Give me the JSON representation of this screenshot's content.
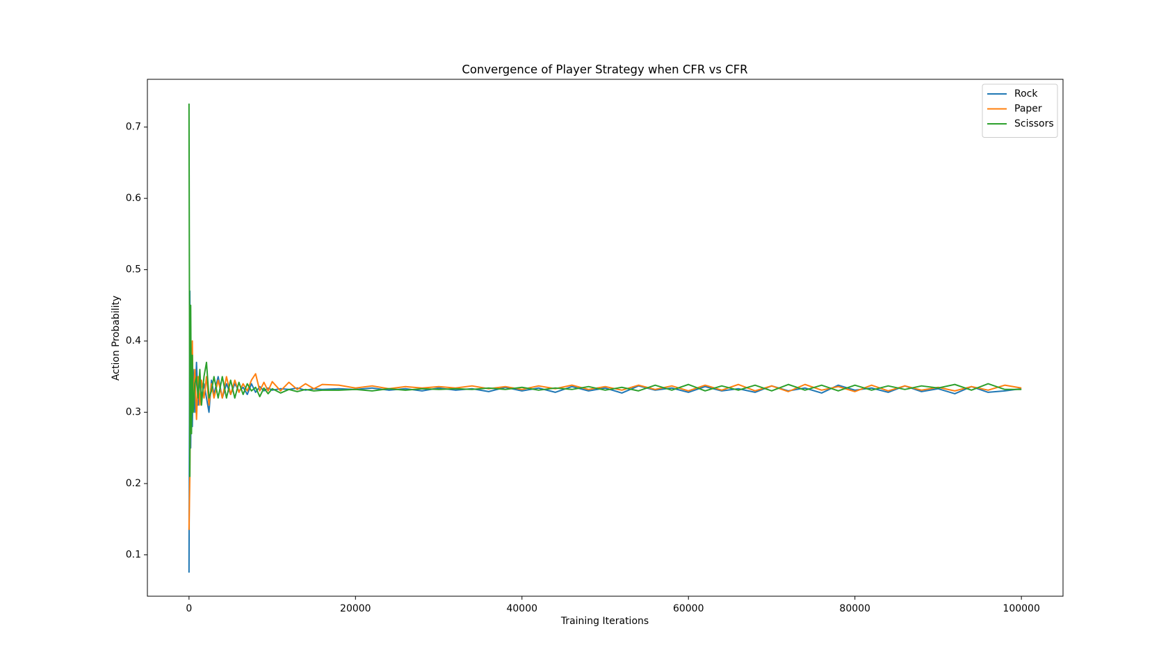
{
  "chart_data": {
    "type": "line",
    "title": "Convergence of Player Strategy when CFR vs CFR",
    "x_label": "Training Iterations",
    "y_label": "Action Probability",
    "xlim": [
      -5000,
      105000
    ],
    "ylim": [
      0.042,
      0.767
    ],
    "xticks": [
      0,
      20000,
      40000,
      60000,
      80000,
      100000
    ],
    "yticks": [
      0.1,
      0.2,
      0.3,
      0.4,
      0.5,
      0.6,
      0.7
    ],
    "legend": "upper right",
    "grid": false,
    "x": [
      0,
      100,
      200,
      300,
      400,
      500,
      700,
      900,
      1100,
      1300,
      1500,
      1800,
      2100,
      2400,
      2700,
      3000,
      3500,
      4000,
      4500,
      5000,
      5500,
      6000,
      6500,
      7000,
      7500,
      8000,
      8500,
      9000,
      9500,
      10000,
      11000,
      12000,
      13000,
      14000,
      15000,
      16000,
      18000,
      20000,
      22000,
      24000,
      26000,
      28000,
      30000,
      32000,
      34000,
      36000,
      38000,
      40000,
      42000,
      44000,
      46000,
      48000,
      50000,
      52000,
      54000,
      56000,
      58000,
      60000,
      62000,
      64000,
      66000,
      68000,
      70000,
      72000,
      74000,
      76000,
      78000,
      80000,
      82000,
      84000,
      86000,
      88000,
      90000,
      92000,
      94000,
      96000,
      98000,
      100000
    ],
    "series": [
      {
        "name": "Rock",
        "color": "#1f77b4",
        "values": [
          0.075,
          0.47,
          0.25,
          0.38,
          0.28,
          0.36,
          0.3,
          0.37,
          0.31,
          0.35,
          0.32,
          0.34,
          0.32,
          0.3,
          0.345,
          0.325,
          0.35,
          0.32,
          0.34,
          0.325,
          0.34,
          0.33,
          0.335,
          0.325,
          0.34,
          0.328,
          0.336,
          0.33,
          0.334,
          0.331,
          0.333,
          0.332,
          0.334,
          0.331,
          0.333,
          0.332,
          0.333,
          0.332,
          0.334,
          0.331,
          0.333,
          0.33,
          0.334,
          0.331,
          0.333,
          0.329,
          0.335,
          0.33,
          0.334,
          0.328,
          0.336,
          0.33,
          0.334,
          0.327,
          0.337,
          0.331,
          0.334,
          0.328,
          0.336,
          0.33,
          0.333,
          0.328,
          0.337,
          0.33,
          0.334,
          0.327,
          0.338,
          0.331,
          0.334,
          0.328,
          0.337,
          0.329,
          0.333,
          0.326,
          0.336,
          0.328,
          0.33,
          0.333
        ]
      },
      {
        "name": "Paper",
        "color": "#ff7f0e",
        "values": [
          0.135,
          0.21,
          0.42,
          0.29,
          0.4,
          0.3,
          0.36,
          0.29,
          0.35,
          0.31,
          0.345,
          0.32,
          0.35,
          0.31,
          0.34,
          0.32,
          0.345,
          0.32,
          0.35,
          0.325,
          0.345,
          0.328,
          0.34,
          0.33,
          0.345,
          0.354,
          0.33,
          0.342,
          0.33,
          0.343,
          0.33,
          0.342,
          0.332,
          0.34,
          0.333,
          0.339,
          0.338,
          0.334,
          0.337,
          0.333,
          0.336,
          0.334,
          0.336,
          0.334,
          0.337,
          0.333,
          0.336,
          0.332,
          0.337,
          0.333,
          0.338,
          0.332,
          0.336,
          0.331,
          0.338,
          0.332,
          0.337,
          0.33,
          0.338,
          0.331,
          0.339,
          0.33,
          0.337,
          0.329,
          0.339,
          0.331,
          0.336,
          0.329,
          0.338,
          0.33,
          0.337,
          0.331,
          0.335,
          0.33,
          0.336,
          0.331,
          0.338,
          0.334
        ]
      },
      {
        "name": "Scissors",
        "color": "#2ca02c",
        "values": [
          0.733,
          0.21,
          0.45,
          0.27,
          0.38,
          0.3,
          0.34,
          0.35,
          0.32,
          0.36,
          0.31,
          0.35,
          0.37,
          0.32,
          0.33,
          0.35,
          0.32,
          0.35,
          0.32,
          0.345,
          0.32,
          0.342,
          0.325,
          0.34,
          0.33,
          0.335,
          0.322,
          0.334,
          0.326,
          0.333,
          0.327,
          0.332,
          0.329,
          0.332,
          0.33,
          0.331,
          0.331,
          0.332,
          0.33,
          0.333,
          0.331,
          0.333,
          0.332,
          0.333,
          0.332,
          0.334,
          0.332,
          0.335,
          0.331,
          0.334,
          0.332,
          0.336,
          0.331,
          0.335,
          0.33,
          0.338,
          0.331,
          0.339,
          0.33,
          0.337,
          0.331,
          0.338,
          0.33,
          0.339,
          0.331,
          0.338,
          0.33,
          0.338,
          0.331,
          0.337,
          0.332,
          0.337,
          0.334,
          0.339,
          0.331,
          0.34,
          0.332,
          0.332
        ]
      }
    ]
  }
}
